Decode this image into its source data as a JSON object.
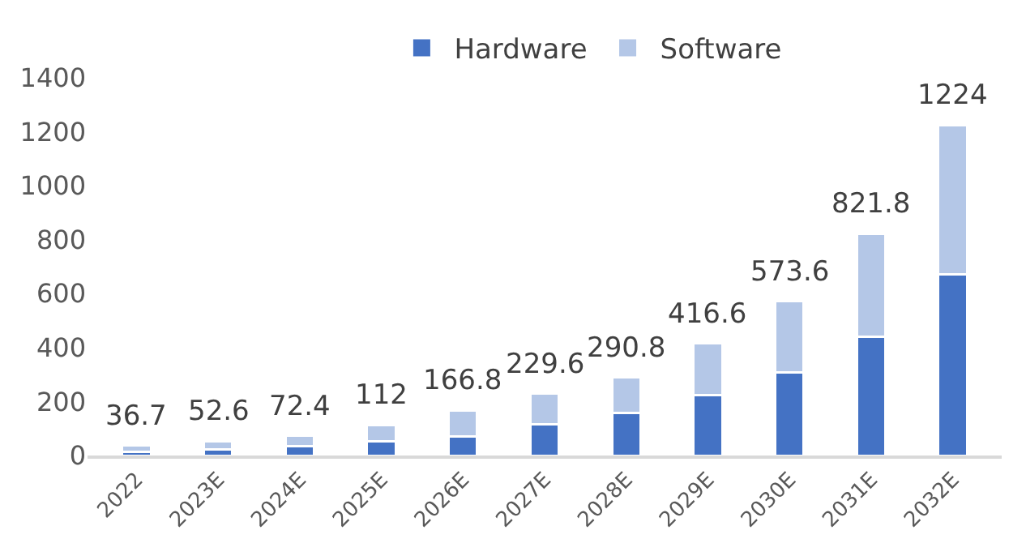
{
  "chart_data": {
    "type": "bar",
    "stacked": true,
    "categories": [
      "2022",
      "2023E",
      "2024E",
      "2025E",
      "2026E",
      "2027E",
      "2028E",
      "2029E",
      "2030E",
      "2031E",
      "2032E"
    ],
    "series": [
      {
        "name": "Hardware",
        "color": "#4472c4",
        "values": [
          15,
          22,
          34,
          52,
          72,
          115,
          157,
          223,
          308,
          440,
          670
        ]
      },
      {
        "name": "Software",
        "color": "#b4c7e7",
        "values": [
          21.7,
          30.6,
          38.4,
          60,
          94.8,
          114.6,
          133.8,
          193.6,
          265.6,
          381.8,
          554
        ]
      }
    ],
    "totals": [
      "36.7",
      "52.6",
      "72.4",
      "112",
      "166.8",
      "229.6",
      "290.8",
      "416.6",
      "573.6",
      "821.8",
      "1224"
    ],
    "ylim": [
      0,
      1400
    ],
    "yticks": [
      0,
      200,
      400,
      600,
      800,
      1000,
      1200,
      1400
    ],
    "legend": "top"
  }
}
